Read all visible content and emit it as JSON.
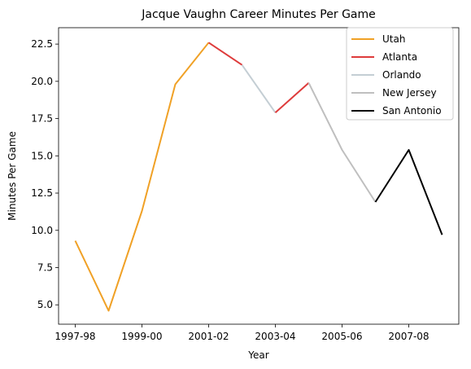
{
  "chart_data": {
    "type": "line",
    "title": "Jacque Vaughn Career Minutes Per Game",
    "xlabel": "Year",
    "ylabel": "Minutes Per Game",
    "x_ticks": [
      "1997-98",
      "1999-00",
      "2001-02",
      "2003-04",
      "2005-06",
      "2007-08"
    ],
    "y_ticks": [
      "5.0",
      "7.5",
      "10.0",
      "12.5",
      "15.0",
      "17.5",
      "20.0",
      "22.5"
    ],
    "ylim": [
      3.7,
      23.6
    ],
    "grid": false,
    "legend_position": "top-right",
    "seasons": [
      "1997-98",
      "1998-99",
      "1999-00",
      "2000-01",
      "2001-02",
      "2002-03",
      "2003-04",
      "2004-05",
      "2005-06",
      "2006-07",
      "2007-08",
      "2008-09"
    ],
    "series": [
      {
        "name": "Utah",
        "color": "#f0a126",
        "x": [
          "1997-98",
          "1998-99",
          "1999-00",
          "2000-01",
          "2001-02"
        ],
        "values": [
          9.3,
          4.6,
          11.3,
          19.8,
          22.6
        ]
      },
      {
        "name": "Atlanta",
        "color": "#de3b3b",
        "x": [
          "2001-02",
          "2002-03"
        ],
        "values": [
          22.6,
          21.1
        ]
      },
      {
        "name": "Orlando",
        "color": "#c4ced4",
        "x": [
          "2002-03",
          "2003-04"
        ],
        "values": [
          21.1,
          17.9
        ]
      },
      {
        "name": "Atlanta",
        "color": "#de3b3b",
        "x": [
          "2003-04",
          "2004-05"
        ],
        "values": [
          17.9,
          19.9
        ]
      },
      {
        "name": "New Jersey",
        "color": "#bfbfbf",
        "x": [
          "2004-05",
          "2005-06",
          "2006-07"
        ],
        "values": [
          19.9,
          15.4,
          11.9
        ]
      },
      {
        "name": "San Antonio",
        "color": "#000000",
        "x": [
          "2006-07",
          "2007-08",
          "2008-09"
        ],
        "values": [
          11.9,
          15.4,
          9.7
        ]
      }
    ],
    "legend": [
      {
        "name": "Utah",
        "color": "#f0a126"
      },
      {
        "name": "Atlanta",
        "color": "#de3b3b"
      },
      {
        "name": "Orlando",
        "color": "#c4ced4"
      },
      {
        "name": "New Jersey",
        "color": "#bfbfbf"
      },
      {
        "name": "San Antonio",
        "color": "#000000"
      }
    ]
  }
}
